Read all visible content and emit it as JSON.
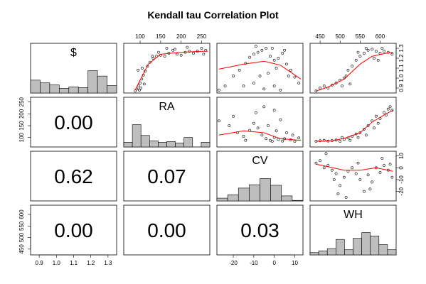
{
  "chart_data": {
    "type": "scatter-matrix",
    "title": "Kendall tau Correlation Plot",
    "variables": [
      {
        "name": "$",
        "range": [
          0.85,
          1.35
        ],
        "ticks": [
          0.9,
          1.0,
          1.1,
          1.2,
          1.3
        ],
        "tick_labels": [
          "0.9",
          "1.0",
          "1.1",
          "1.2",
          "1.3"
        ]
      },
      {
        "name": "RA",
        "range": [
          60,
          270
        ],
        "ticks": [
          100,
          150,
          200,
          250
        ],
        "tick_labels": [
          "100",
          "150",
          "200",
          "250"
        ]
      },
      {
        "name": "CV",
        "range": [
          -28,
          14
        ],
        "ticks": [
          -20,
          -10,
          0,
          10
        ],
        "tick_labels": [
          "-20",
          "-10",
          "0",
          "10"
        ]
      },
      {
        "name": "WH",
        "range": [
          425,
          640
        ],
        "ticks": [
          450,
          500,
          550,
          600
        ],
        "tick_labels": [
          "450",
          "500",
          "550",
          "600"
        ]
      }
    ],
    "correlations": [
      {
        "row": 1,
        "col": 0,
        "value": "0.00"
      },
      {
        "row": 2,
        "col": 0,
        "value": "0.62"
      },
      {
        "row": 2,
        "col": 1,
        "value": "0.07"
      },
      {
        "row": 3,
        "col": 0,
        "value": "0.00"
      },
      {
        "row": 3,
        "col": 1,
        "value": "0.00"
      },
      {
        "row": 3,
        "col": 2,
        "value": "0.03"
      }
    ],
    "histograms": [
      {
        "variable": "$",
        "heights": [
          0.95,
          0.75,
          0.6,
          0.35,
          0.45,
          0.4,
          1.65,
          1.25,
          0.55
        ]
      },
      {
        "variable": "RA",
        "heights": [
          0.35,
          1.65,
          0.85,
          0.45,
          0.35,
          0.4,
          0.3,
          0.7,
          0.0,
          0.35
        ]
      },
      {
        "variable": "CV",
        "heights": [
          0.25,
          0.55,
          1.15,
          1.45,
          2.0,
          1.4,
          0.45,
          0.05
        ]
      },
      {
        "variable": "WH",
        "heights": [
          0.2,
          0.35,
          0.55,
          1.35,
          0.45,
          1.45,
          1.95,
          1.65,
          0.9,
          0.45
        ]
      }
    ],
    "smoothers": {
      "0-1": [
        [
          88,
          0.88
        ],
        [
          100,
          0.98
        ],
        [
          120,
          1.14
        ],
        [
          150,
          1.24
        ],
        [
          200,
          1.26
        ],
        [
          250,
          1.27
        ],
        [
          265,
          1.27
        ]
      ],
      "0-2": [
        [
          -27,
          1.09
        ],
        [
          -15,
          1.14
        ],
        [
          -5,
          1.17
        ],
        [
          3,
          1.13
        ],
        [
          13,
          0.99
        ]
      ],
      "0-3": [
        [
          440,
          0.87
        ],
        [
          470,
          0.91
        ],
        [
          510,
          0.99
        ],
        [
          550,
          1.14
        ],
        [
          580,
          1.22
        ],
        [
          615,
          1.25
        ],
        [
          632,
          1.26
        ]
      ],
      "1-2": [
        [
          -27,
          110
        ],
        [
          -15,
          128
        ],
        [
          -5,
          120
        ],
        [
          3,
          95
        ],
        [
          13,
          88
        ]
      ],
      "1-3": [
        [
          440,
          84
        ],
        [
          480,
          86
        ],
        [
          510,
          96
        ],
        [
          550,
          120
        ],
        [
          580,
          165
        ],
        [
          615,
          200
        ],
        [
          632,
          215
        ]
      ],
      "2-3": [
        [
          440,
          3
        ],
        [
          470,
          1
        ],
        [
          510,
          -2
        ],
        [
          550,
          -2
        ],
        [
          590,
          0
        ],
        [
          632,
          -3
        ]
      ]
    },
    "scatter_points": {
      "0-1": [
        [
          88,
          0.87
        ],
        [
          92,
          0.89
        ],
        [
          96,
          0.92
        ],
        [
          100,
          0.95
        ],
        [
          104,
          0.99
        ],
        [
          108,
          1.03
        ],
        [
          112,
          1.07
        ],
        [
          118,
          1.12
        ],
        [
          124,
          1.16
        ],
        [
          132,
          1.2
        ],
        [
          140,
          1.22
        ],
        [
          150,
          1.23
        ],
        [
          160,
          1.22
        ],
        [
          170,
          1.25
        ],
        [
          180,
          1.28
        ],
        [
          190,
          1.24
        ],
        [
          200,
          1.23
        ],
        [
          210,
          1.26
        ],
        [
          220,
          1.27
        ],
        [
          230,
          1.25
        ],
        [
          240,
          1.27
        ],
        [
          250,
          1.3
        ],
        [
          260,
          1.28
        ],
        [
          95,
          1.08
        ],
        [
          105,
          1.1
        ],
        [
          98,
          0.88
        ],
        [
          102,
          0.9
        ],
        [
          110,
          0.94
        ],
        [
          130,
          1.22
        ],
        [
          145,
          1.26
        ],
        [
          165,
          1.3
        ],
        [
          185,
          1.29
        ],
        [
          215,
          1.31
        ],
        [
          255,
          1.24
        ]
      ],
      "0-2": [
        [
          -27,
          0.88
        ],
        [
          -24,
          0.92
        ],
        [
          -20,
          1.02
        ],
        [
          -17,
          1.08
        ],
        [
          -14,
          1.15
        ],
        [
          -12,
          1.21
        ],
        [
          -10,
          1.24
        ],
        [
          -8,
          1.26
        ],
        [
          -6,
          1.28
        ],
        [
          -4,
          1.3
        ],
        [
          -2,
          1.22
        ],
        [
          0,
          1.18
        ],
        [
          2,
          1.2
        ],
        [
          4,
          1.25
        ],
        [
          6,
          1.14
        ],
        [
          8,
          1.08
        ],
        [
          10,
          1.01
        ],
        [
          12,
          0.95
        ],
        [
          -15,
          0.92
        ],
        [
          -10,
          0.95
        ],
        [
          -5,
          0.89
        ],
        [
          0,
          0.92
        ],
        [
          3,
          0.88
        ],
        [
          -7,
          1.02
        ],
        [
          -3,
          1.05
        ],
        [
          1,
          1.1
        ],
        [
          5,
          1.28
        ],
        [
          -9,
          1.32
        ],
        [
          -1,
          1.3
        ],
        [
          7,
          1.02
        ]
      ],
      "0-3": [
        [
          440,
          0.87
        ],
        [
          450,
          0.9
        ],
        [
          460,
          0.92
        ],
        [
          470,
          0.9
        ],
        [
          480,
          0.93
        ],
        [
          490,
          0.95
        ],
        [
          500,
          0.98
        ],
        [
          510,
          1.0
        ],
        [
          520,
          1.08
        ],
        [
          530,
          1.12
        ],
        [
          540,
          1.18
        ],
        [
          550,
          1.22
        ],
        [
          560,
          1.25
        ],
        [
          570,
          1.28
        ],
        [
          580,
          1.29
        ],
        [
          590,
          1.27
        ],
        [
          600,
          1.25
        ],
        [
          610,
          1.27
        ],
        [
          620,
          1.26
        ],
        [
          630,
          1.24
        ],
        [
          505,
          0.92
        ],
        [
          515,
          1.02
        ],
        [
          525,
          0.94
        ],
        [
          545,
          1.26
        ],
        [
          565,
          1.3
        ],
        [
          585,
          1.2
        ],
        [
          595,
          1.18
        ],
        [
          605,
          1.3
        ]
      ],
      "1-2": [
        [
          -27,
          170
        ],
        [
          -22,
          150
        ],
        [
          -18,
          120
        ],
        [
          -15,
          105
        ],
        [
          -12,
          130
        ],
        [
          -10,
          160
        ],
        [
          -8,
          140
        ],
        [
          -6,
          110
        ],
        [
          -4,
          95
        ],
        [
          -2,
          88
        ],
        [
          0,
          100
        ],
        [
          2,
          92
        ],
        [
          4,
          85
        ],
        [
          6,
          120
        ],
        [
          8,
          90
        ],
        [
          10,
          84
        ],
        [
          12,
          98
        ],
        [
          -20,
          190
        ],
        [
          -5,
          230
        ],
        [
          0,
          215
        ],
        [
          3,
          175
        ],
        [
          -14,
          88
        ],
        [
          -1,
          84
        ],
        [
          5,
          95
        ],
        [
          -9,
          205
        ],
        [
          -3,
          150
        ],
        [
          1,
          128
        ],
        [
          9,
          110
        ]
      ],
      "1-3": [
        [
          440,
          84
        ],
        [
          450,
          86
        ],
        [
          460,
          88
        ],
        [
          470,
          85
        ],
        [
          480,
          87
        ],
        [
          490,
          89
        ],
        [
          500,
          84
        ],
        [
          510,
          92
        ],
        [
          520,
          98
        ],
        [
          530,
          105
        ],
        [
          540,
          115
        ],
        [
          550,
          120
        ],
        [
          560,
          135
        ],
        [
          570,
          150
        ],
        [
          580,
          170
        ],
        [
          590,
          190
        ],
        [
          600,
          180
        ],
        [
          610,
          205
        ],
        [
          620,
          220
        ],
        [
          630,
          215
        ],
        [
          505,
          100
        ],
        [
          525,
          88
        ],
        [
          545,
          100
        ],
        [
          565,
          110
        ],
        [
          585,
          140
        ],
        [
          595,
          160
        ],
        [
          615,
          195
        ],
        [
          625,
          230
        ]
      ],
      "2-3": [
        [
          440,
          4
        ],
        [
          450,
          6
        ],
        [
          460,
          0
        ],
        [
          470,
          2
        ],
        [
          480,
          -2
        ],
        [
          490,
          -5
        ],
        [
          500,
          -15
        ],
        [
          510,
          -8
        ],
        [
          520,
          -3
        ],
        [
          530,
          0
        ],
        [
          540,
          -5
        ],
        [
          550,
          -10
        ],
        [
          560,
          -20
        ],
        [
          570,
          -6
        ],
        [
          580,
          -12
        ],
        [
          590,
          0
        ],
        [
          600,
          -4
        ],
        [
          610,
          2
        ],
        [
          620,
          -2
        ],
        [
          630,
          -8
        ],
        [
          465,
          12
        ],
        [
          495,
          -22
        ],
        [
          515,
          -25
        ],
        [
          545,
          4
        ],
        [
          575,
          -18
        ],
        [
          605,
          8
        ],
        [
          625,
          3
        ],
        [
          485,
          -10
        ]
      ]
    }
  }
}
